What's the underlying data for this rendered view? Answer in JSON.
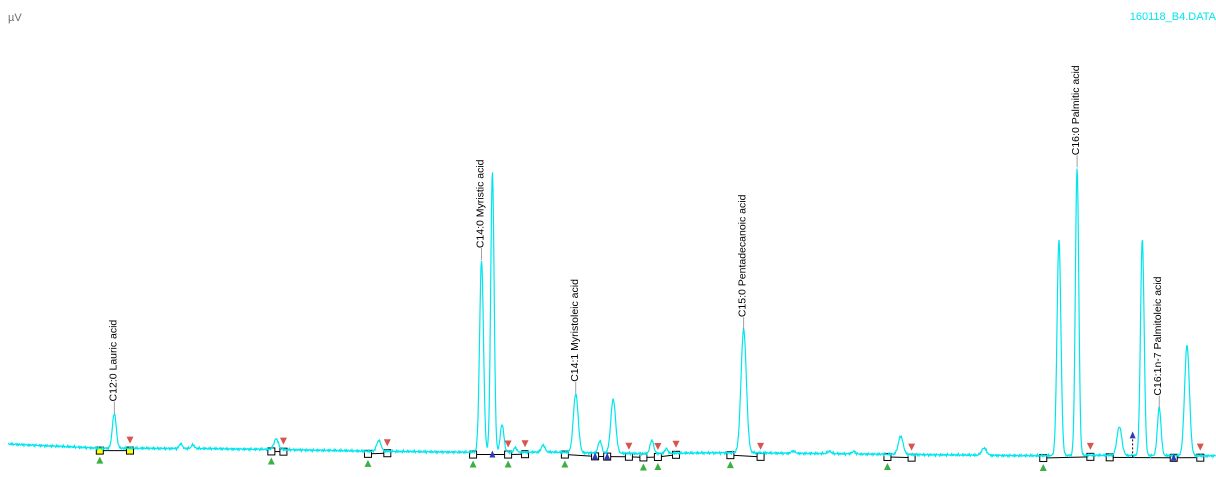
{
  "y_unit": "µV",
  "file_name": "160118_B4.DATA",
  "colors": {
    "trace": "#00e5ee",
    "baseline": "#000000",
    "start_marker": "#3cb043",
    "end_marker": "#d9534f",
    "split_marker": "#2e3bb5",
    "label_line": "#888888"
  },
  "chart_data": {
    "type": "line",
    "title": "",
    "xlabel": "",
    "ylabel": "µV",
    "xlim": [
      0,
      100
    ],
    "ylim": [
      0,
      100
    ],
    "peaks": [
      {
        "x": 8.8,
        "height": 29,
        "width": 0.16,
        "label": "C12:0 Lauric acid"
      },
      {
        "x": 14.3,
        "height": 4,
        "width": 0.12
      },
      {
        "x": 15.3,
        "height": 3,
        "width": 0.12
      },
      {
        "x": 22.2,
        "height": 9,
        "width": 0.18
      },
      {
        "x": 30.7,
        "height": 9,
        "width": 0.18
      },
      {
        "x": 39.2,
        "height": 160,
        "width": 0.16,
        "label": "C14:0 Myristic acid"
      },
      {
        "x": 40.1,
        "height": 234,
        "width": 0.14
      },
      {
        "x": 40.9,
        "height": 23,
        "width": 0.15
      },
      {
        "x": 42.0,
        "height": 4,
        "width": 0.12
      },
      {
        "x": 44.3,
        "height": 6,
        "width": 0.15
      },
      {
        "x": 47.0,
        "height": 49,
        "width": 0.2,
        "label": "C14:1 Myristoleic acid"
      },
      {
        "x": 49.0,
        "height": 10,
        "width": 0.15
      },
      {
        "x": 50.1,
        "height": 45,
        "width": 0.2
      },
      {
        "x": 53.3,
        "height": 11,
        "width": 0.15
      },
      {
        "x": 54.5,
        "height": 4,
        "width": 0.12
      },
      {
        "x": 60.9,
        "height": 103,
        "width": 0.22,
        "label": "C15:0 Pentadecanoic acid"
      },
      {
        "x": 65.0,
        "height": 2,
        "width": 0.15
      },
      {
        "x": 68.0,
        "height": 2,
        "width": 0.15
      },
      {
        "x": 70.0,
        "height": 2,
        "width": 0.15
      },
      {
        "x": 73.9,
        "height": 15,
        "width": 0.2
      },
      {
        "x": 80.8,
        "height": 6,
        "width": 0.2
      },
      {
        "x": 87.0,
        "height": 180,
        "width": 0.16
      },
      {
        "x": 88.5,
        "height": 240,
        "width": 0.14,
        "label": "C16:0 Palmitic acid"
      },
      {
        "x": 92.0,
        "height": 24,
        "width": 0.2
      },
      {
        "x": 93.9,
        "height": 180,
        "width": 0.15
      },
      {
        "x": 95.3,
        "height": 40,
        "width": 0.15,
        "label": "C16:1n-7 Palmitoleic acid"
      },
      {
        "x": 97.6,
        "height": 92,
        "width": 0.2
      }
    ],
    "baseline": [
      {
        "x": 0,
        "y": 5
      },
      {
        "x": 7.6,
        "y": 1.5
      },
      {
        "x": 15,
        "y": 1.3
      },
      {
        "x": 22,
        "y": 0.5
      },
      {
        "x": 30,
        "y": -1
      },
      {
        "x": 38,
        "y": -1.8
      },
      {
        "x": 45,
        "y": -1.8
      },
      {
        "x": 52,
        "y": -3
      },
      {
        "x": 60,
        "y": -2.2
      },
      {
        "x": 75,
        "y": -3.8
      },
      {
        "x": 85,
        "y": -4.8
      },
      {
        "x": 89,
        "y": -4.3
      },
      {
        "x": 91,
        "y": -4.5
      },
      {
        "x": 100,
        "y": -4.8
      }
    ],
    "integration": [
      {
        "points": [
          [
            7.6,
            -0.5
          ],
          [
            10.1,
            -0.5
          ]
        ],
        "selected": true
      },
      {
        "points": [
          [
            21.8,
            -1.2
          ],
          [
            22.8,
            -1.4
          ]
        ]
      },
      {
        "points": [
          [
            29.8,
            -3.2
          ],
          [
            31.4,
            -2.7
          ]
        ]
      },
      {
        "points": [
          [
            38.5,
            -3.8
          ],
          [
            41.4,
            -3.8
          ],
          [
            42.8,
            -3.5
          ]
        ]
      },
      {
        "points": [
          [
            46.1,
            -3.8
          ],
          [
            48.6,
            -5.3
          ],
          [
            49.6,
            -5.5
          ],
          [
            51.4,
            -5.6
          ],
          [
            52.6,
            -6.2
          ],
          [
            53.8,
            -5.8
          ],
          [
            55.3,
            -4.0
          ]
        ]
      },
      {
        "points": [
          [
            59.8,
            -4.3
          ],
          [
            62.3,
            -5.7
          ]
        ]
      },
      {
        "points": [
          [
            72.8,
            -5.8
          ],
          [
            74.8,
            -6.4
          ]
        ]
      },
      {
        "points": [
          [
            85.7,
            -6.7
          ],
          [
            89.6,
            -5.7
          ]
        ]
      },
      {
        "points": [
          [
            91.2,
            -6.1
          ],
          [
            96.5,
            -6.5
          ],
          [
            98.7,
            -6.4
          ]
        ]
      }
    ],
    "start_markers": [
      7.6,
      21.8,
      29.8,
      38.5,
      41.4,
      46.1,
      52.6,
      53.8,
      59.8,
      72.8,
      85.7
    ],
    "end_markers": [
      10.1,
      22.8,
      31.4,
      41.4,
      42.8,
      51.4,
      53.8,
      55.3,
      62.3,
      74.8,
      89.6,
      98.7
    ],
    "split_markers": [
      40.1,
      48.6,
      49.6,
      93.1,
      96.5
    ]
  }
}
